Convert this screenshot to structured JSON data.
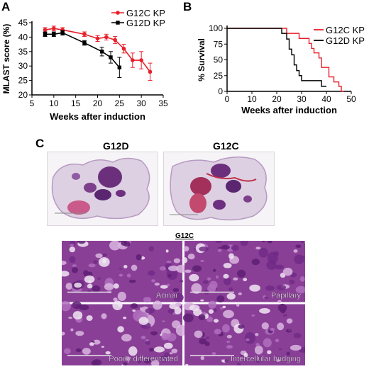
{
  "panels": {
    "a": "A",
    "b": "B",
    "c": "C"
  },
  "chart_data": [
    {
      "type": "line",
      "xlabel": "Weeks after induction",
      "ylabel": "MLAST score (%)",
      "xlim": [
        5,
        35
      ],
      "ylim": [
        20,
        45
      ],
      "xticks": [
        5,
        10,
        15,
        20,
        25,
        30,
        35
      ],
      "yticks": [
        20,
        25,
        30,
        35,
        40,
        45
      ],
      "legend": "top-right",
      "series": [
        {
          "name": "G12C KP",
          "color": "#e8202a",
          "marker": "circle",
          "x": [
            8,
            10,
            12,
            17,
            20,
            22,
            24,
            26,
            28,
            30,
            32
          ],
          "y": [
            42.5,
            43,
            42.5,
            41,
            39.5,
            40,
            39,
            36,
            32,
            32,
            28
          ],
          "err": [
            0.8,
            0.8,
            0.8,
            0.8,
            1,
            1,
            1.2,
            1.5,
            2.5,
            3,
            3
          ]
        },
        {
          "name": "G12D KP",
          "color": "#000000",
          "marker": "square",
          "x": [
            8,
            10,
            12,
            17,
            21,
            23,
            25
          ],
          "y": [
            41,
            41,
            41.5,
            38,
            35,
            33,
            29.5
          ],
          "err": [
            0.8,
            0.8,
            0.8,
            0.8,
            1.5,
            2,
            3.5
          ]
        }
      ]
    },
    {
      "type": "line",
      "subtype": "survival-step",
      "xlabel": "Weeks after induction",
      "ylabel": "% Survival",
      "xlim": [
        0,
        50
      ],
      "ylim": [
        0,
        100
      ],
      "xticks": [
        0,
        10,
        20,
        30,
        40,
        50
      ],
      "yticks": [
        0,
        25,
        50,
        75,
        100
      ],
      "legend": "top-right",
      "series": [
        {
          "name": "G12C KP",
          "color": "#e8202a",
          "steps": [
            [
              0,
              100
            ],
            [
              24,
              100
            ],
            [
              24,
              92
            ],
            [
              29,
              92
            ],
            [
              29,
              84
            ],
            [
              33,
              84
            ],
            [
              33,
              76
            ],
            [
              34,
              76
            ],
            [
              34,
              68
            ],
            [
              35,
              68
            ],
            [
              35,
              61
            ],
            [
              37,
              61
            ],
            [
              37,
              53
            ],
            [
              38,
              53
            ],
            [
              38,
              38
            ],
            [
              40,
              38
            ],
            [
              40,
              38
            ],
            [
              41,
              38
            ],
            [
              41,
              23
            ],
            [
              43,
              23
            ],
            [
              43,
              15
            ],
            [
              45,
              15
            ],
            [
              45,
              8
            ],
            [
              46,
              8
            ],
            [
              46,
              0
            ],
            [
              47,
              0
            ]
          ]
        },
        {
          "name": "G12D KP",
          "color": "#000000",
          "steps": [
            [
              0,
              100
            ],
            [
              22,
              100
            ],
            [
              22,
              92
            ],
            [
              24,
              92
            ],
            [
              24,
              83
            ],
            [
              25,
              83
            ],
            [
              25,
              67
            ],
            [
              26,
              67
            ],
            [
              26,
              58
            ],
            [
              27,
              58
            ],
            [
              27,
              42
            ],
            [
              28,
              42
            ],
            [
              28,
              33
            ],
            [
              29,
              33
            ],
            [
              29,
              25
            ],
            [
              30,
              25
            ],
            [
              30,
              17
            ],
            [
              32,
              17
            ],
            [
              32,
              17
            ],
            [
              38,
              17
            ],
            [
              38,
              8
            ],
            [
              40,
              8
            ]
          ]
        }
      ]
    }
  ],
  "histology": {
    "left_label": "G12D",
    "right_label": "G12C",
    "grid_title": "G12C",
    "patterns": [
      {
        "label": "Acinar"
      },
      {
        "label": "Papillary"
      },
      {
        "label": "Poorly differentiated"
      },
      {
        "label": "Intercellular bridging"
      }
    ]
  }
}
